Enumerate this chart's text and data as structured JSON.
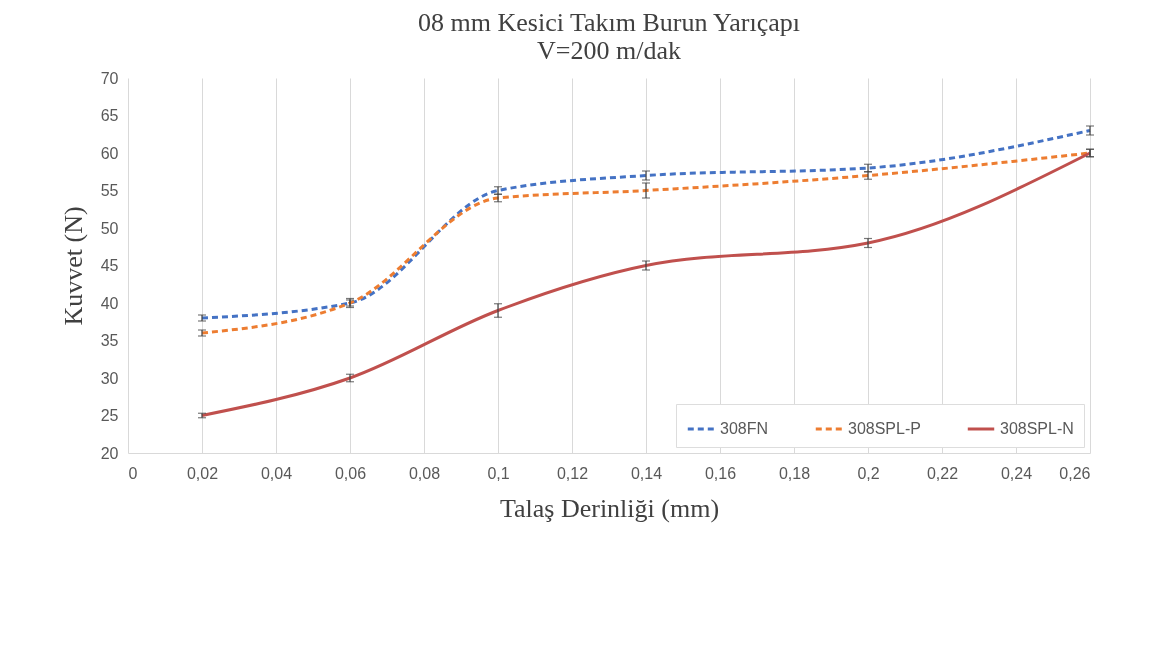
{
  "chart_data": {
    "type": "line",
    "title": "08 mm Kesici Takım Burun Yarıçapı",
    "subtitle": "V=200 m/dak",
    "xlabel": "Talaş Derinliği (mm)",
    "ylabel": "Kuvvet (N)",
    "x": [
      0.02,
      0.06,
      0.1,
      0.14,
      0.2,
      0.26
    ],
    "xlim": [
      0,
      0.26
    ],
    "xticks": [
      0,
      {
        "value": 0.02,
        "label": "0,02"
      },
      {
        "value": 0.04,
        "label": "0,04"
      },
      {
        "value": 0.06,
        "label": "0,06"
      },
      {
        "value": 0.08,
        "label": "0,08"
      },
      {
        "value": 0.1,
        "label": "0,1"
      },
      {
        "value": 0.12,
        "label": "0,12"
      },
      {
        "value": 0.14,
        "label": "0,14"
      },
      {
        "value": 0.16,
        "label": "0,16"
      },
      {
        "value": 0.18,
        "label": "0,18"
      },
      {
        "value": 0.2,
        "label": "0,2"
      },
      {
        "value": 0.22,
        "label": "0,22"
      },
      {
        "value": 0.24,
        "label": "0,24"
      },
      {
        "value": 0.26,
        "label": "0,26"
      }
    ],
    "ylim": [
      20,
      70
    ],
    "yticks": [
      20,
      25,
      30,
      35,
      40,
      45,
      50,
      55,
      60,
      65,
      70
    ],
    "grid": "x",
    "legend": "bottom right",
    "marker": "none",
    "series": [
      {
        "name": "308FN",
        "color": "#4472c4",
        "line_style": "dashed",
        "values": [
          38,
          40,
          55,
          57,
          58,
          63
        ],
        "errors": [
          0.4,
          0.4,
          0.5,
          0.6,
          0.5,
          0.6
        ]
      },
      {
        "name": "308SPL-P",
        "color": "#ed7d31",
        "line_style": "dashed",
        "values": [
          36,
          40,
          54,
          55,
          57,
          60
        ],
        "errors": [
          0.4,
          0.6,
          0.5,
          1,
          0.5,
          0.5
        ]
      },
      {
        "name": "308SPL-N",
        "color": "#c0504d",
        "line_style": "solid",
        "values": [
          25,
          30,
          39,
          45,
          48,
          60
        ],
        "errors": [
          0.3,
          0.5,
          0.9,
          0.6,
          0.6,
          0.5
        ]
      }
    ]
  }
}
